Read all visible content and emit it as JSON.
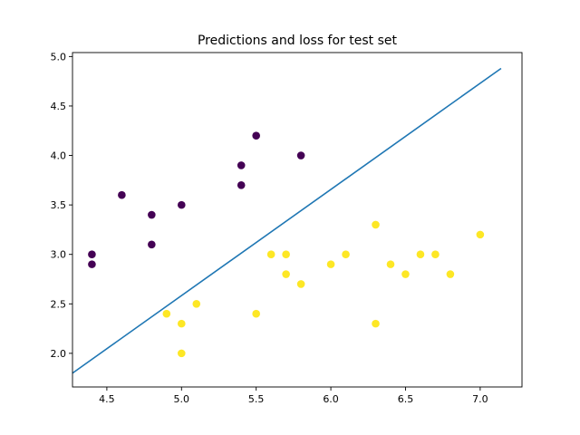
{
  "chart_data": {
    "type": "scatter",
    "title": "Predictions and loss for test set",
    "xlabel": "",
    "ylabel": "",
    "xlim": [
      4.27,
      7.28
    ],
    "ylim": [
      1.66,
      5.04
    ],
    "xticks": [
      "4.5",
      "5.0",
      "5.5",
      "6.0",
      "6.5",
      "7.0"
    ],
    "yticks": [
      "2.0",
      "2.5",
      "3.0",
      "3.5",
      "4.0",
      "4.5",
      "5.0"
    ],
    "grid": false,
    "legend": "none",
    "series": [
      {
        "color": "#440154",
        "points": [
          [
            4.4,
            3.0
          ],
          [
            4.4,
            2.9
          ],
          [
            4.6,
            3.6
          ],
          [
            4.8,
            3.4
          ],
          [
            4.8,
            3.1
          ],
          [
            5.0,
            3.5
          ],
          [
            5.4,
            3.9
          ],
          [
            5.4,
            3.7
          ],
          [
            5.5,
            4.2
          ],
          [
            5.8,
            4.0
          ]
        ]
      },
      {
        "color": "#fde725",
        "points": [
          [
            4.9,
            2.4
          ],
          [
            5.0,
            2.3
          ],
          [
            5.0,
            2.0
          ],
          [
            5.1,
            2.5
          ],
          [
            5.5,
            2.4
          ],
          [
            5.6,
            3.0
          ],
          [
            5.7,
            3.0
          ],
          [
            5.7,
            2.8
          ],
          [
            5.8,
            2.7
          ],
          [
            6.0,
            2.9
          ],
          [
            6.1,
            3.0
          ],
          [
            6.3,
            3.3
          ],
          [
            6.3,
            2.3
          ],
          [
            6.4,
            2.9
          ],
          [
            6.5,
            2.8
          ],
          [
            6.6,
            3.0
          ],
          [
            6.7,
            3.0
          ],
          [
            6.8,
            2.8
          ],
          [
            7.0,
            3.2
          ]
        ]
      }
    ],
    "line": {
      "color": "#1f77b4",
      "x": [
        4.27,
        7.14
      ],
      "y": [
        1.8,
        4.88
      ]
    }
  }
}
